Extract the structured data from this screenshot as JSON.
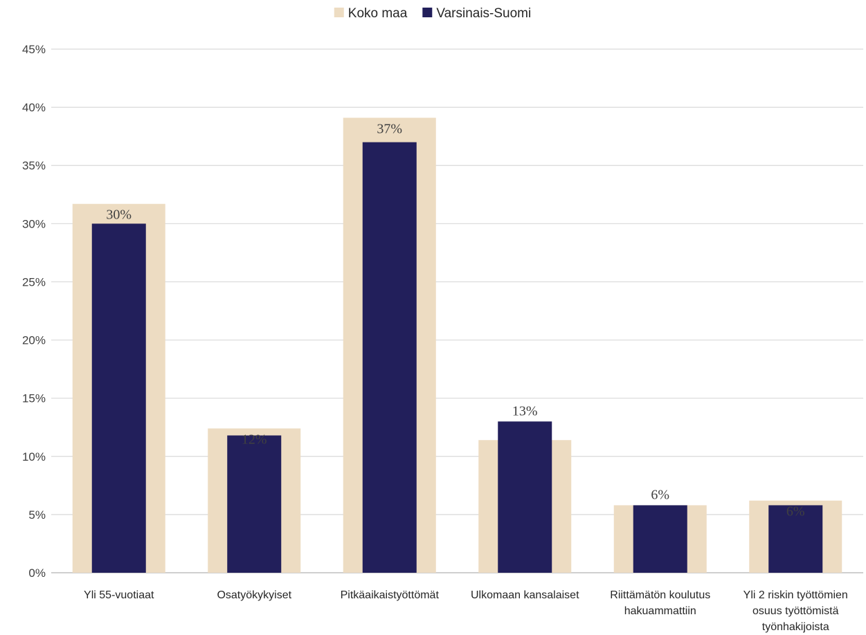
{
  "chart_data": {
    "type": "bar",
    "title": "",
    "xlabel": "",
    "ylabel": "",
    "ylim": [
      0,
      45
    ],
    "yticks": [
      "0%",
      "5%",
      "10%",
      "15%",
      "20%",
      "25%",
      "30%",
      "35%",
      "40%",
      "45%"
    ],
    "ytick_values": [
      0,
      5,
      10,
      15,
      20,
      25,
      30,
      35,
      40,
      45
    ],
    "grid": true,
    "legend_position": "top",
    "categories": [
      [
        "Yli 55-vuotiaat"
      ],
      [
        "Osatyökykyiset"
      ],
      [
        "Pitkäaikaistyöttömät"
      ],
      [
        "Ulkomaan kansalaiset"
      ],
      [
        "Riittämätön koulutus",
        "hakuammattiin"
      ],
      [
        "Yli 2 riskin työttömien",
        "osuus työttömistä",
        "työnhakijoista"
      ]
    ],
    "series": [
      {
        "name": "Koko maa",
        "color": "#eddcc2",
        "values": [
          31.7,
          12.4,
          39.1,
          11.4,
          5.8,
          6.2
        ]
      },
      {
        "name": "Varsinais-Suomi",
        "color": "#221f5b",
        "values": [
          30.0,
          11.8,
          37.0,
          13.0,
          5.8,
          5.8
        ],
        "data_labels": [
          "30%",
          "12%",
          "37%",
          "13%",
          "6%",
          "6%"
        ]
      }
    ]
  }
}
